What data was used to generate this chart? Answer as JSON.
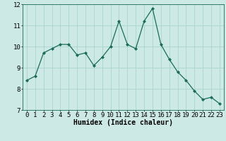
{
  "x": [
    0,
    1,
    2,
    3,
    4,
    5,
    6,
    7,
    8,
    9,
    10,
    11,
    12,
    13,
    14,
    15,
    16,
    17,
    18,
    19,
    20,
    21,
    22,
    23
  ],
  "y": [
    8.4,
    8.6,
    9.7,
    9.9,
    10.1,
    10.1,
    9.6,
    9.7,
    9.1,
    9.5,
    10.0,
    11.2,
    10.1,
    9.9,
    11.2,
    11.8,
    10.1,
    9.4,
    8.8,
    8.4,
    7.9,
    7.5,
    7.6,
    7.3
  ],
  "line_color": "#1a6b5a",
  "marker": "D",
  "marker_size": 2.0,
  "bg_color": "#cce9e5",
  "grid_color": "#aad4cf",
  "xlabel": "Humidex (Indice chaleur)",
  "ylim": [
    7,
    12
  ],
  "xlim_min": -0.5,
  "xlim_max": 23.5,
  "yticks": [
    7,
    8,
    9,
    10,
    11,
    12
  ],
  "xticks": [
    0,
    1,
    2,
    3,
    4,
    5,
    6,
    7,
    8,
    9,
    10,
    11,
    12,
    13,
    14,
    15,
    16,
    17,
    18,
    19,
    20,
    21,
    22,
    23
  ],
  "xlabel_fontsize": 7,
  "tick_fontsize": 6.5,
  "linewidth": 0.9
}
